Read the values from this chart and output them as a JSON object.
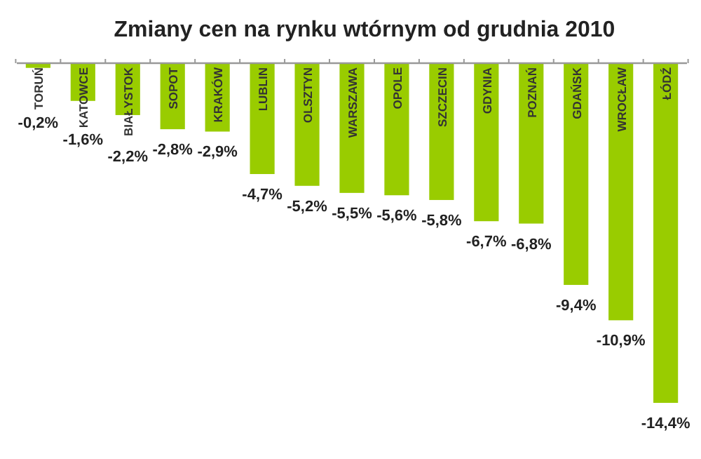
{
  "chart_data": {
    "type": "bar",
    "title": "Zmiany cen na rynku wtórnym od grudnia 2010",
    "categories": [
      "TORUŃ",
      "KATOWCE",
      "BIAŁYSTOK",
      "SOPOT",
      "KRAKÓW",
      "LUBLIN",
      "OLSZTYN",
      "WARSZAWA",
      "OPOLE",
      "SZCZECIN",
      "GDYNIA",
      "POZNAŃ",
      "GDAŃSK",
      "WROCŁAW",
      "ŁÓDŹ"
    ],
    "values": [
      -0.2,
      -1.6,
      -2.2,
      -2.8,
      -2.9,
      -4.7,
      -5.2,
      -5.5,
      -5.6,
      -5.8,
      -6.7,
      -6.8,
      -9.4,
      -10.9,
      -14.4
    ],
    "value_labels": [
      "-0,2%",
      "-1,6%",
      "-2,2%",
      "-2,8%",
      "-2,9%",
      "-4,7%",
      "-5,2%",
      "-5,5%",
      "-5,6%",
      "-5,8%",
      "-6,7%",
      "-6,8%",
      "-9,4%",
      "-10,9%",
      "-14,4%"
    ],
    "color": "#99cc00"
  }
}
